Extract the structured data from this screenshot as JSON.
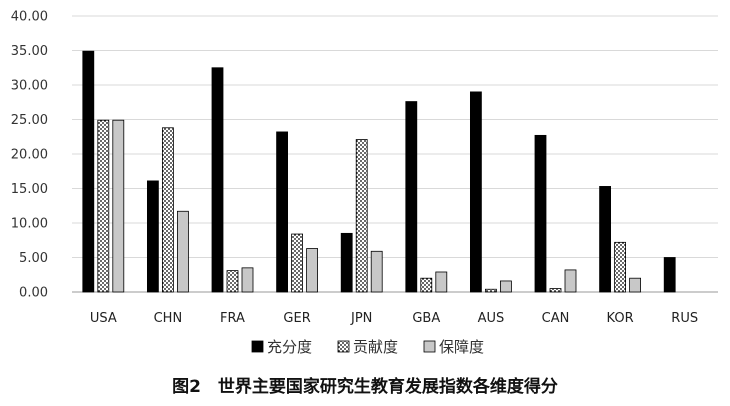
{
  "chart_data": {
    "type": "bar",
    "categories": [
      "USA",
      "CHN",
      "FRA",
      "GER",
      "JPN",
      "GBA",
      "AUS",
      "CAN",
      "KOR",
      "RUS"
    ],
    "series": [
      {
        "name": "充分度",
        "color": "#000000",
        "pattern": "solid",
        "values": [
          34.9,
          16.1,
          32.5,
          23.2,
          8.5,
          27.6,
          29.0,
          22.7,
          15.3,
          5.0
        ]
      },
      {
        "name": "贡献度",
        "color": "#ffffff",
        "pattern": "dotted",
        "values": [
          24.9,
          23.8,
          3.1,
          8.4,
          22.1,
          2.0,
          0.4,
          0.5,
          7.2,
          0.0
        ]
      },
      {
        "name": "保障度",
        "color": "#c8c8c8",
        "pattern": "solid",
        "values": [
          24.9,
          11.7,
          3.5,
          6.3,
          5.9,
          2.9,
          1.6,
          3.2,
          2.0,
          0.0
        ]
      }
    ],
    "ylim": [
      0,
      40
    ],
    "yticks": [
      "0.00",
      "5.00",
      "10.00",
      "15.00",
      "20.00",
      "25.00",
      "30.00",
      "35.00",
      "40.00"
    ],
    "grid": true,
    "legend": "bottom",
    "caption": "图2　世界主要国家研究生教育发展指数各维度得分"
  }
}
